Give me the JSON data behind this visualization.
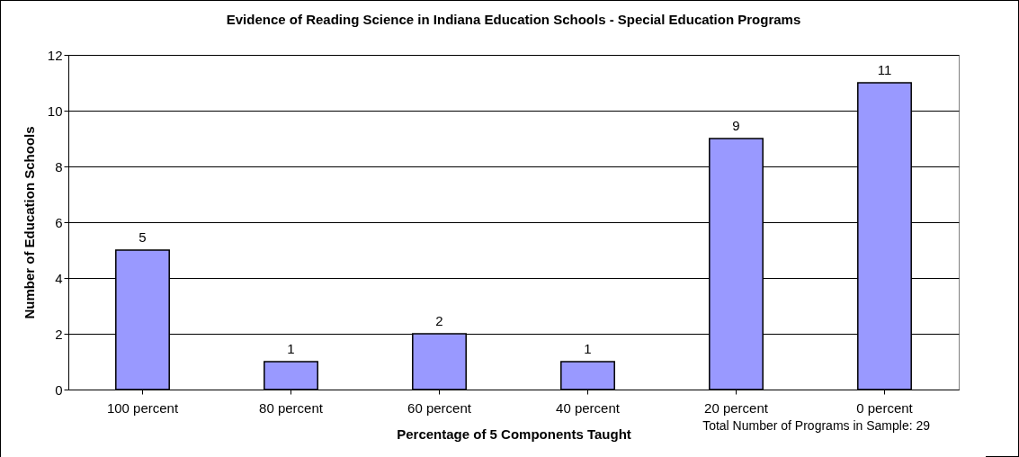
{
  "chart_data": {
    "type": "bar",
    "title": "Evidence of Reading Science in Indiana Education Schools - Special Education Programs",
    "xlabel": "Percentage of 5 Components Taught",
    "ylabel": "Number of Education Schools",
    "categories": [
      "100 percent",
      "80 percent",
      "60 percent",
      "40 percent",
      "20 percent",
      "0 percent"
    ],
    "values": [
      5,
      1,
      2,
      1,
      9,
      11
    ],
    "color": "#9999ff",
    "ylim": [
      0,
      12
    ],
    "yticks": [
      0,
      2,
      4,
      6,
      8,
      10,
      12
    ],
    "grid": "y",
    "data_labels": true,
    "annotations": [
      "Total Number of Programs in Sample: 29"
    ]
  }
}
